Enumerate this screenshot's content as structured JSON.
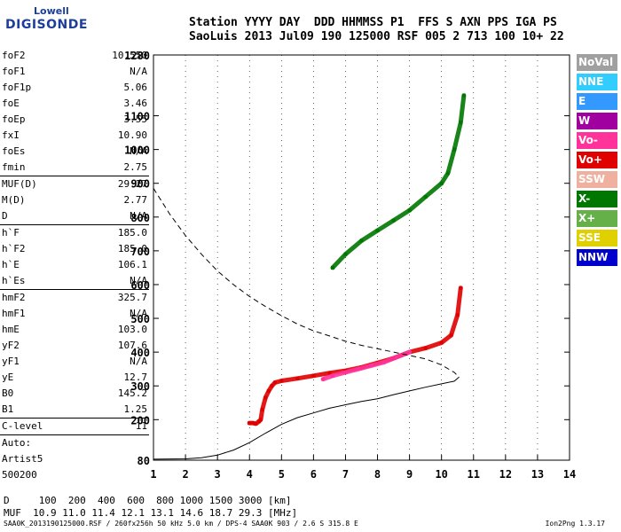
{
  "logo": {
    "line1": "Lowell",
    "line2": "DIGISONDE"
  },
  "header": {
    "line1": "Station YYYY DAY  DDD HHMMSS P1  FFS S AXN PPS IGA PS",
    "line2": "SaoLuis 2013 Jul09 190 125000 RSF 005 2 713 100 10+ 22"
  },
  "params": [
    [
      {
        "k": "foF2",
        "v": "10.550"
      },
      {
        "k": "foF1",
        "v": "N/A"
      },
      {
        "k": "foF1p",
        "v": "5.06"
      },
      {
        "k": "foE",
        "v": "3.46"
      },
      {
        "k": "foEp",
        "v": "3.55"
      },
      {
        "k": "fxI",
        "v": "10.90"
      },
      {
        "k": "foEs",
        "v": "N/A"
      },
      {
        "k": "fmin",
        "v": "2.75"
      }
    ],
    [
      {
        "k": "MUF(D)",
        "v": "29.27"
      },
      {
        "k": "M(D)",
        "v": "2.77"
      },
      {
        "k": "D",
        "v": "N/A"
      }
    ],
    [
      {
        "k": "h`F",
        "v": "185.0"
      },
      {
        "k": "h`F2",
        "v": "185.0"
      },
      {
        "k": "h`E",
        "v": "106.1"
      },
      {
        "k": "h`Es",
        "v": "N/A"
      }
    ],
    [
      {
        "k": "hmF2",
        "v": "325.7"
      },
      {
        "k": "hmF1",
        "v": "N/A"
      },
      {
        "k": "hmE",
        "v": "103.0"
      },
      {
        "k": "yF2",
        "v": "107.6"
      },
      {
        "k": "yF1",
        "v": "N/A"
      },
      {
        "k": "yE",
        "v": "12.7"
      },
      {
        "k": "B0",
        "v": "145.2"
      },
      {
        "k": "B1",
        "v": "1.25"
      }
    ],
    [
      {
        "k": "C-level",
        "v": "11"
      }
    ],
    [
      {
        "k": "Auto:",
        "v": ""
      },
      {
        "k": "Artist5",
        "v": ""
      },
      {
        "k": "500200",
        "v": ""
      }
    ]
  ],
  "legend": [
    {
      "label": "NoVal",
      "color": "#a0a0a0"
    },
    {
      "label": "NNE",
      "color": "#33ccff"
    },
    {
      "label": "E",
      "color": "#3399ff"
    },
    {
      "label": "W",
      "color": "#a000a0"
    },
    {
      "label": "Vo-",
      "color": "#ff3399"
    },
    {
      "label": "Vo+",
      "color": "#e00000"
    },
    {
      "label": "SSW",
      "color": "#f0b0a0"
    },
    {
      "label": "X-",
      "color": "#007700"
    },
    {
      "label": "X+",
      "color": "#66b04a"
    },
    {
      "label": "SSE",
      "color": "#e0d000"
    },
    {
      "label": "NNW",
      "color": "#0000cc"
    }
  ],
  "muf_table": {
    "d_line": "D     100  200  400  600  800 1000 1500 3000 [km]",
    "muf_line": "MUF  10.9 11.0 11.4 12.1 13.1 14.6 18.7 29.3 [MHz]"
  },
  "footer": {
    "file_line": "SAA0K_2013190125000.RSF / 260fx256h 50 kHz 5.0 km / DPS-4 SAA0K 903 / 2.6 S 315.8 E",
    "version": "Ion2Png 1.3.17"
  },
  "chart_data": {
    "type": "scatter",
    "title": "",
    "xlabel": "",
    "ylabel": "",
    "xlim": [
      1,
      14
    ],
    "ylim": [
      80,
      1280
    ],
    "x_ticks": [
      1,
      2,
      3,
      4,
      5,
      6,
      7,
      8,
      9,
      10,
      11,
      12,
      13,
      14
    ],
    "y_ticks": [
      80,
      200,
      300,
      400,
      500,
      600,
      700,
      800,
      900,
      1000,
      1100,
      1280
    ],
    "series": [
      {
        "color": "#e00000",
        "style": "trace",
        "x": [
          4.0,
          4.1,
          4.2,
          4.3,
          4.35,
          4.4,
          4.5,
          4.6,
          4.7,
          4.8,
          5.0,
          5.5,
          6.0,
          6.5,
          7.0,
          7.5,
          8.0,
          8.5,
          9.0,
          9.5,
          10.0,
          10.3,
          10.5,
          10.6
        ],
        "y": [
          190,
          190,
          188,
          195,
          200,
          230,
          265,
          285,
          300,
          310,
          315,
          322,
          330,
          338,
          345,
          355,
          368,
          382,
          400,
          412,
          428,
          450,
          510,
          590
        ]
      },
      {
        "color": "#007700",
        "style": "trace",
        "x": [
          6.6,
          7.0,
          7.5,
          8.0,
          8.5,
          9.0,
          9.5,
          10.0,
          10.2,
          10.4,
          10.6,
          10.7
        ],
        "y": [
          650,
          690,
          730,
          760,
          790,
          820,
          860,
          900,
          930,
          1000,
          1080,
          1160
        ]
      },
      {
        "color": "#ff3399",
        "style": "trace",
        "x": [
          6.3,
          6.6,
          7.0,
          7.4,
          7.8,
          8.2,
          8.6,
          9.0
        ],
        "y": [
          320,
          330,
          340,
          350,
          360,
          370,
          385,
          400
        ]
      },
      {
        "color": "#000000",
        "style": "solid",
        "x": [
          1.0,
          2.0,
          2.5,
          3.0,
          3.5,
          4.0,
          4.5,
          5.0,
          5.5,
          6.0,
          6.5,
          7.0,
          7.5,
          8.0,
          8.5,
          9.0,
          9.5,
          10.0,
          10.4,
          10.55
        ],
        "y": [
          83,
          84,
          87,
          95,
          110,
          132,
          160,
          186,
          206,
          220,
          234,
          244,
          254,
          262,
          274,
          285,
          296,
          306,
          314,
          326
        ]
      },
      {
        "color": "#000000",
        "style": "dashed",
        "x": [
          1.0,
          1.5,
          2.0,
          2.5,
          3.0,
          3.5,
          4.0,
          4.5,
          5.0,
          5.5,
          6.0,
          6.5,
          7.0,
          7.5,
          8.0,
          8.5,
          9.0,
          9.5,
          10.0,
          10.4,
          10.55
        ],
        "y": [
          885,
          810,
          745,
          690,
          640,
          600,
          565,
          535,
          508,
          483,
          463,
          448,
          432,
          420,
          410,
          400,
          390,
          380,
          362,
          340,
          326
        ]
      }
    ]
  }
}
